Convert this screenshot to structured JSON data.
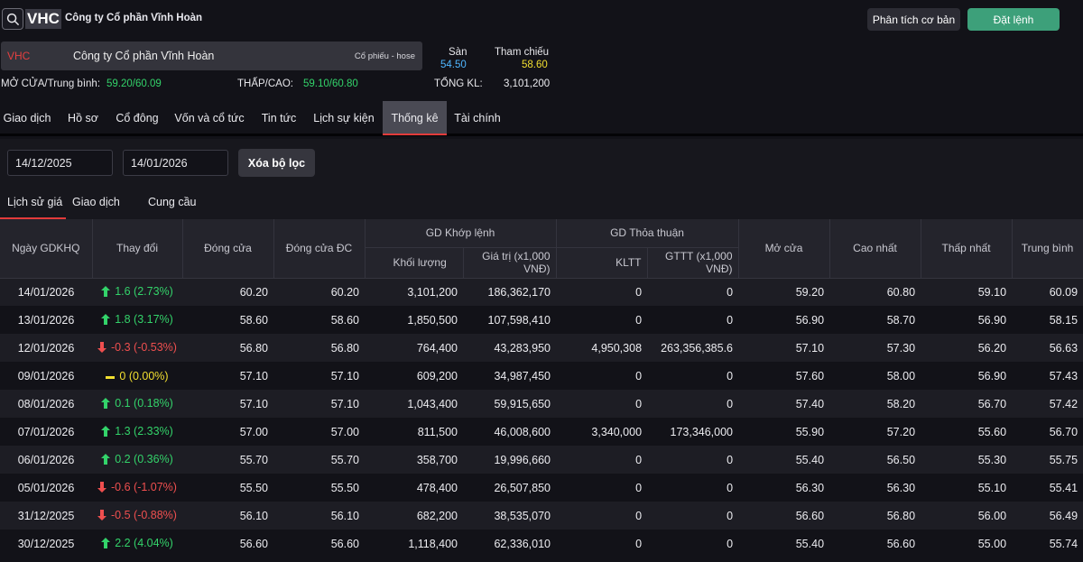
{
  "header": {
    "ticker": "VHC",
    "company": "Công ty Cổ phần Vĩnh Hoàn",
    "btn_analysis": "Phân tích cơ bản",
    "btn_order": "Đặt lệnh"
  },
  "stock_card": {
    "ticker": "VHC",
    "company": "Công ty Cổ phần Vĩnh Hoàn",
    "exchange": "Cổ phiếu - hose"
  },
  "quote": {
    "floor_label": "Sàn",
    "floor_value": "54.50",
    "ref_label": "Tham chiếu",
    "ref_value": "58.60",
    "open_avg_label": "MỞ CỬA/Trung bình:",
    "open_avg_value": "59.20/60.09",
    "low_high_label": "THẤP/CAO:",
    "low_high_value": "59.10/60.80",
    "total_vol_label": "TỔNG KL:",
    "total_vol_value": "3,101,200",
    "colors": {
      "floor": "#4fb6ff",
      "ref": "#f2df30",
      "up": "#33d36a",
      "down": "#ef4f4f"
    }
  },
  "tabs": [
    "Giao dịch",
    "Hồ sơ",
    "Cổ đông",
    "Vốn và cổ tức",
    "Tin tức",
    "Lịch sự kiện",
    "Thống kê",
    "Tài chính"
  ],
  "active_tab": "Thống kê",
  "filter": {
    "from_date": "14/12/2025",
    "to_date": "14/01/2026",
    "clear_label": "Xóa bộ lọc"
  },
  "sub_tabs": [
    "Lịch sử giá",
    "Giao dịch NN",
    "Cung cầu"
  ],
  "active_sub_tab": "Lịch sử giá",
  "table": {
    "headers": {
      "date": "Ngày GDKHQ",
      "change": "Thay đổi",
      "close": "Đóng cửa",
      "close_adj": "Đóng cửa ĐC",
      "matched_group": "GD Khớp lệnh",
      "matched_vol": "Khối lượng",
      "matched_val": "Giá trị (x1,000 VNĐ)",
      "deal_group": "GD Thỏa thuận",
      "deal_vol": "KLTT",
      "deal_val": "GTTT (x1,000 VNĐ)",
      "open": "Mở cửa",
      "high": "Cao nhất",
      "low": "Thấp nhất",
      "avg": "Trung bình"
    },
    "rows": [
      {
        "date": "14/01/2026",
        "dir": "up",
        "change": "1.6 (2.73%)",
        "close": "60.20",
        "close_adj": "60.20",
        "vol": "3,101,200",
        "val": "186,362,170",
        "kltt": "0",
        "gttt": "0",
        "open": "59.20",
        "high": "60.80",
        "low": "59.10",
        "avg": "60.09"
      },
      {
        "date": "13/01/2026",
        "dir": "up",
        "change": "1.8 (3.17%)",
        "close": "58.60",
        "close_adj": "58.60",
        "vol": "1,850,500",
        "val": "107,598,410",
        "kltt": "0",
        "gttt": "0",
        "open": "56.90",
        "high": "58.70",
        "low": "56.90",
        "avg": "58.15"
      },
      {
        "date": "12/01/2026",
        "dir": "down",
        "change": "-0.3 (-0.53%)",
        "close": "56.80",
        "close_adj": "56.80",
        "vol": "764,400",
        "val": "43,283,950",
        "kltt": "4,950,308",
        "gttt": "263,356,385.6",
        "open": "57.10",
        "high": "57.30",
        "low": "56.20",
        "avg": "56.63"
      },
      {
        "date": "09/01/2026",
        "dir": "flat",
        "change": "0 (0.00%)",
        "close": "57.10",
        "close_adj": "57.10",
        "vol": "609,200",
        "val": "34,987,450",
        "kltt": "0",
        "gttt": "0",
        "open": "57.60",
        "high": "58.00",
        "low": "56.90",
        "avg": "57.43"
      },
      {
        "date": "08/01/2026",
        "dir": "up",
        "change": "0.1 (0.18%)",
        "close": "57.10",
        "close_adj": "57.10",
        "vol": "1,043,400",
        "val": "59,915,650",
        "kltt": "0",
        "gttt": "0",
        "open": "57.40",
        "high": "58.20",
        "low": "56.70",
        "avg": "57.42"
      },
      {
        "date": "07/01/2026",
        "dir": "up",
        "change": "1.3 (2.33%)",
        "close": "57.00",
        "close_adj": "57.00",
        "vol": "811,500",
        "val": "46,008,600",
        "kltt": "3,340,000",
        "gttt": "173,346,000",
        "open": "55.90",
        "high": "57.20",
        "low": "55.60",
        "avg": "56.70"
      },
      {
        "date": "06/01/2026",
        "dir": "up",
        "change": "0.2 (0.36%)",
        "close": "55.70",
        "close_adj": "55.70",
        "vol": "358,700",
        "val": "19,996,660",
        "kltt": "0",
        "gttt": "0",
        "open": "55.40",
        "high": "56.50",
        "low": "55.30",
        "avg": "55.75"
      },
      {
        "date": "05/01/2026",
        "dir": "down",
        "change": "-0.6 (-1.07%)",
        "close": "55.50",
        "close_adj": "55.50",
        "vol": "478,400",
        "val": "26,507,850",
        "kltt": "0",
        "gttt": "0",
        "open": "56.30",
        "high": "56.30",
        "low": "55.10",
        "avg": "55.41"
      },
      {
        "date": "31/12/2025",
        "dir": "down",
        "change": "-0.5 (-0.88%)",
        "close": "56.10",
        "close_adj": "56.10",
        "vol": "682,200",
        "val": "38,535,070",
        "kltt": "0",
        "gttt": "0",
        "open": "56.60",
        "high": "56.80",
        "low": "56.00",
        "avg": "56.49"
      },
      {
        "date": "30/12/2025",
        "dir": "up",
        "change": "2.2 (4.04%)",
        "close": "56.60",
        "close_adj": "56.60",
        "vol": "1,118,400",
        "val": "62,336,010",
        "kltt": "0",
        "gttt": "0",
        "open": "55.40",
        "high": "56.60",
        "low": "55.00",
        "avg": "55.74"
      }
    ]
  }
}
